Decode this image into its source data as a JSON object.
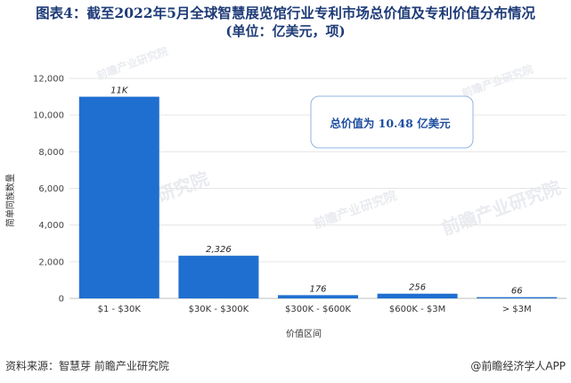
{
  "title_line1": "图表4：截至2022年5月全球智慧展览馆行业专利市场总价值及专利价值分布情况",
  "title_line2": "(单位：亿美元，项)",
  "source": "资料来源：智慧芽 前瞻产业研究院",
  "footer_app": "@前瞻经济学人APP",
  "watermark": "前瞻产业研究院",
  "annotation": "总价值为 10.48 亿美元",
  "colors": {
    "bar": "#1f6fd0",
    "title": "#1f3c78",
    "grid": "#e6e6e6",
    "annotation_border": "#8fb4e3",
    "annotation_text": "#1f4fa0"
  },
  "chart_data": {
    "type": "bar",
    "categories": [
      "$1 - $30K",
      "$30K - $300K",
      "$300K - $600K",
      "$600K - $3M",
      "> $3M"
    ],
    "values": [
      11000,
      2326,
      176,
      256,
      66
    ],
    "data_labels": [
      "11K",
      "2,326",
      "176",
      "256",
      "66"
    ],
    "yticks": [
      "0",
      "2,000",
      "4,000",
      "6,000",
      "8,000",
      "10,000",
      "12,000"
    ],
    "ylim": [
      0,
      12000
    ],
    "xlabel": "价值区间",
    "ylabel": "简单同族数量",
    "grid": true
  }
}
